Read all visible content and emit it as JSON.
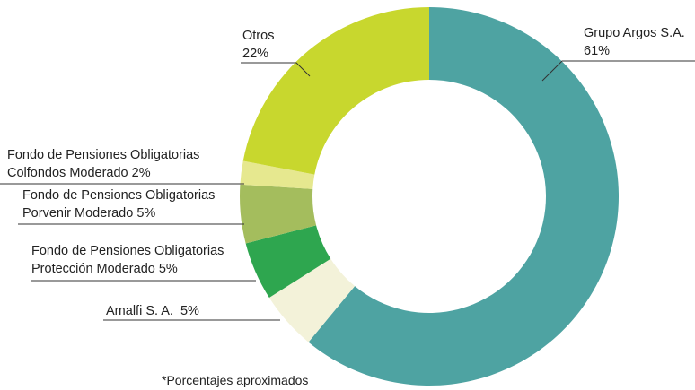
{
  "chart_data": {
    "type": "donut",
    "categories": [
      "Grupo Argos S.A.",
      "Amalfi S. A.",
      "Fondo de Pensiones Obligatorias Protección Moderado",
      "Fondo de Pensiones Obligatorias Porvenir Moderado",
      "Fondo de Pensiones Obligatorias Colfondos Moderado",
      "Otros"
    ],
    "values": [
      61,
      5,
      5,
      5,
      2,
      22
    ],
    "value_labels": [
      "61%",
      "5%",
      "5%",
      "5%",
      "2%",
      "22%"
    ],
    "colors": [
      "#4ea3a2",
      "#f3f2d9",
      "#2ea64f",
      "#a4bd5d",
      "#e6e88f",
      "#c8d72e"
    ],
    "note": "*Porcentajes aproximados"
  }
}
